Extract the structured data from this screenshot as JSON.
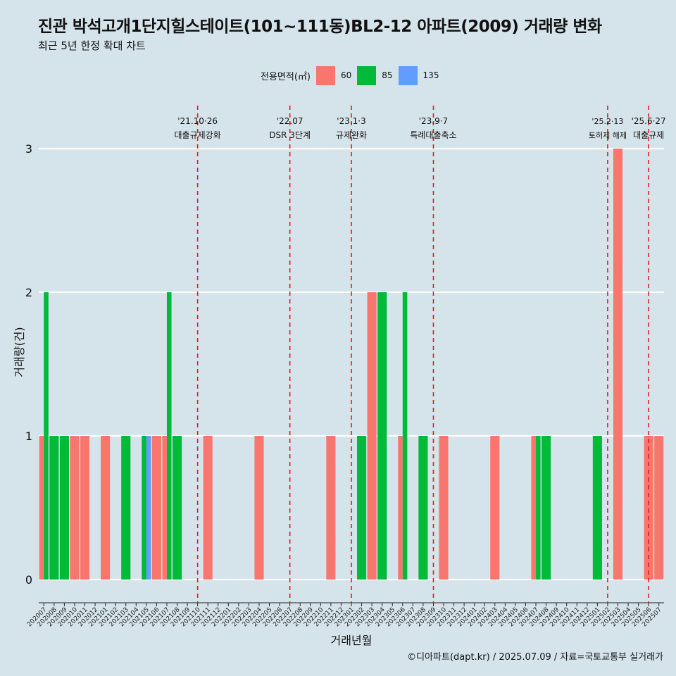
{
  "header": {
    "title": "진관 박석고개1단지힐스테이트(101~111동)BL2-12 아파트(2009) 거래량 변화",
    "subtitle": "최근 5년 한정 확대 차트"
  },
  "legend": {
    "title": "전용면적(㎡)",
    "items": [
      {
        "label": "60",
        "color": "#f8766d"
      },
      {
        "label": "85",
        "color": "#00ba38"
      },
      {
        "label": "135",
        "color": "#619cff"
      }
    ]
  },
  "caption": "©디아파트(dapt.kr) / 2025.07.09 / 자료=국토교통부 실거래가",
  "chart_data": {
    "type": "bar",
    "xlabel": "거래년월",
    "ylabel": "거래량(건)",
    "ylim": [
      0,
      3
    ],
    "yticks": [
      0,
      1,
      2,
      3
    ],
    "grid": "horizontal",
    "legend_position": "top",
    "categories": [
      "202007",
      "202008",
      "202009",
      "202010",
      "202011",
      "202012",
      "202101",
      "202102",
      "202103",
      "202104",
      "202105",
      "202106",
      "202107",
      "202108",
      "202109",
      "202110",
      "202111",
      "202112",
      "202201",
      "202202",
      "202203",
      "202204",
      "202205",
      "202206",
      "202207",
      "202208",
      "202209",
      "202210",
      "202211",
      "202212",
      "202301",
      "202302",
      "202303",
      "202304",
      "202305",
      "202306",
      "202307",
      "202308",
      "202309",
      "202310",
      "202311",
      "202312",
      "202401",
      "202402",
      "202403",
      "202404",
      "202405",
      "202406",
      "202407",
      "202408",
      "202409",
      "202410",
      "202411",
      "202412",
      "202501",
      "202502",
      "202503",
      "202504",
      "202505",
      "202506",
      "202507"
    ],
    "series": [
      {
        "name": "60",
        "color": "#f8766d",
        "values": [
          1,
          0,
          0,
          1,
          1,
          0,
          1,
          0,
          0,
          0,
          0,
          1,
          1,
          0,
          0,
          0,
          1,
          0,
          0,
          0,
          0,
          1,
          0,
          0,
          0,
          0,
          0,
          0,
          1,
          0,
          0,
          0,
          2,
          0,
          0,
          1,
          0,
          0,
          0,
          1,
          0,
          0,
          0,
          0,
          1,
          0,
          0,
          0,
          1,
          0,
          0,
          0,
          0,
          0,
          0,
          0,
          3,
          0,
          0,
          1,
          1
        ]
      },
      {
        "name": "85",
        "color": "#00ba38",
        "values": [
          2,
          1,
          1,
          0,
          0,
          0,
          0,
          0,
          1,
          0,
          1,
          0,
          2,
          1,
          0,
          0,
          0,
          0,
          0,
          0,
          0,
          0,
          0,
          0,
          0,
          0,
          0,
          0,
          0,
          0,
          0,
          1,
          0,
          2,
          0,
          2,
          0,
          1,
          0,
          0,
          0,
          0,
          0,
          0,
          0,
          0,
          0,
          0,
          1,
          1,
          0,
          0,
          0,
          0,
          1,
          0,
          0,
          0,
          0,
          0,
          0
        ]
      },
      {
        "name": "135",
        "color": "#619cff",
        "values": [
          0,
          0,
          0,
          0,
          0,
          0,
          0,
          0,
          0,
          0,
          1,
          0,
          0,
          0,
          0,
          0,
          0,
          0,
          0,
          0,
          0,
          0,
          0,
          0,
          0,
          0,
          0,
          0,
          0,
          0,
          0,
          0,
          0,
          0,
          0,
          0,
          0,
          0,
          0,
          0,
          0,
          0,
          0,
          0,
          0,
          0,
          0,
          0,
          0,
          0,
          0,
          0,
          0,
          0,
          0,
          0,
          0,
          0,
          0,
          0,
          0
        ]
      }
    ],
    "annotations": [
      {
        "category": "202110",
        "date": "'21.10·26",
        "label": "대출규제강화"
      },
      {
        "category": "202207",
        "date": "'22.07",
        "label": "DSR 3단계"
      },
      {
        "category": "202301",
        "date": "'23.1·3",
        "label": "규제완화"
      },
      {
        "category": "202309",
        "date": "'23.9·7",
        "label": "특례대출축소"
      },
      {
        "category": "202502",
        "date": "'25.2·13",
        "label": "토허제 해제"
      },
      {
        "category": "202506",
        "date": "'25.6·27",
        "label": "대출규제"
      }
    ]
  }
}
